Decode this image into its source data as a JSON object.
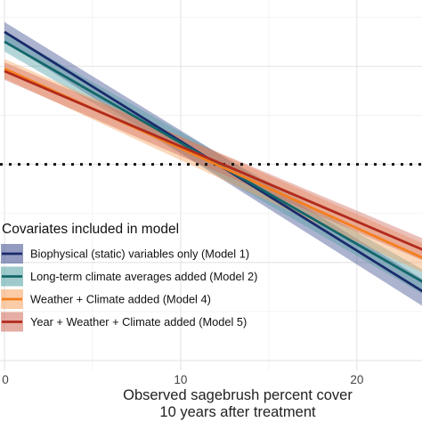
{
  "chart_data": {
    "type": "line",
    "xlabel": "Observed sagebrush percent cover",
    "xlabel_line2": "10 years after treatment",
    "ylabel": "",
    "xlim": [
      0,
      24
    ],
    "ylim": [
      -4.2,
      3.35
    ],
    "x_ticks": [
      0,
      10,
      20
    ],
    "x_tick_labels": [
      "0",
      "10",
      "20"
    ],
    "grid": true,
    "reference_line": {
      "y": 0,
      "style": "dotted"
    },
    "legend": {
      "title": "Covariates included in model",
      "position": "bottom-left"
    },
    "series": [
      {
        "name": "Biophysical (static) variables only (Model 1)",
        "color": "#1a2b6b",
        "band_color": "#3a4a8c",
        "x": [
          0,
          24
        ],
        "y": [
          2.7,
          -2.65
        ],
        "lower": [
          2.5,
          -2.95
        ],
        "upper": [
          2.9,
          -2.4
        ]
      },
      {
        "name": "Long-term climate averages added (Model 2)",
        "color": "#13676a",
        "band_color": "#4f9ea1",
        "x": [
          0,
          24
        ],
        "y": [
          2.5,
          -2.45
        ],
        "lower": [
          2.3,
          -2.7
        ],
        "upper": [
          2.7,
          -2.2
        ]
      },
      {
        "name": "Weather + Climate added (Model 4)",
        "color": "#f47f1f",
        "band_color": "#f8a25e",
        "x": [
          0,
          24
        ],
        "y": [
          1.95,
          -1.95
        ],
        "lower": [
          1.75,
          -2.25
        ],
        "upper": [
          2.15,
          -1.65
        ]
      },
      {
        "name": "Year + Weather + Climate added (Model 5)",
        "color": "#b12a1c",
        "band_color": "#d06a5a",
        "x": [
          0,
          24
        ],
        "y": [
          1.9,
          -1.78
        ],
        "lower": [
          1.72,
          -2.0
        ],
        "upper": [
          2.08,
          -1.55
        ]
      }
    ]
  }
}
